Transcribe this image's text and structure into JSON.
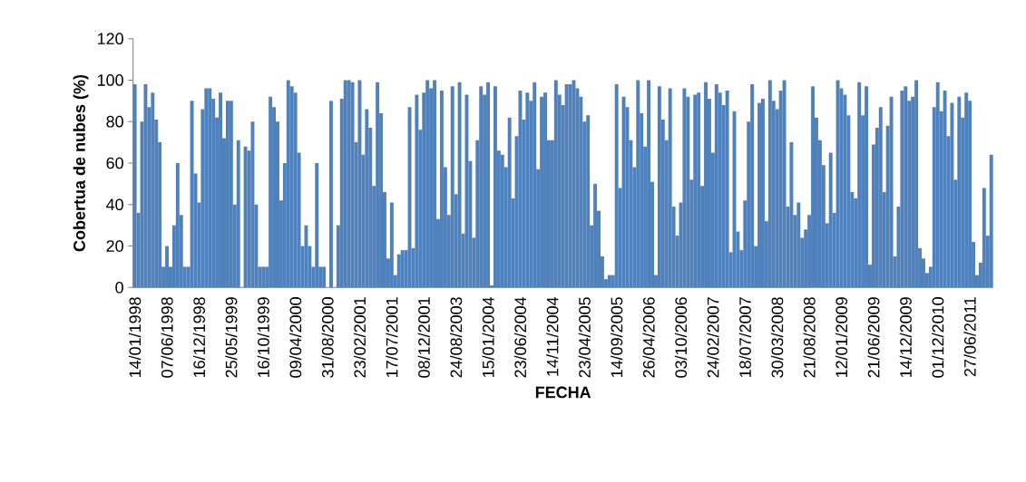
{
  "chart_data": {
    "type": "bar",
    "xlabel": "FECHA",
    "ylabel": "Cobertua de nubes (%)",
    "ylim": [
      0,
      120
    ],
    "yticks": [
      0,
      20,
      40,
      60,
      80,
      100,
      120
    ],
    "color": "#4f81bd",
    "categories": [
      "14/01/1998",
      null,
      null,
      null,
      null,
      null,
      null,
      null,
      null,
      "07/06/1998",
      null,
      null,
      null,
      null,
      null,
      null,
      null,
      null,
      "16/12/1998",
      null,
      null,
      null,
      null,
      null,
      null,
      null,
      null,
      "25/05/1999",
      null,
      null,
      null,
      null,
      null,
      null,
      null,
      null,
      "16/10/1999",
      null,
      null,
      null,
      null,
      null,
      null,
      null,
      null,
      "09/04/2000",
      null,
      null,
      null,
      null,
      null,
      null,
      null,
      null,
      "31/08/2000",
      null,
      null,
      null,
      null,
      null,
      null,
      null,
      null,
      "23/02/2001",
      null,
      null,
      null,
      null,
      null,
      null,
      null,
      null,
      "17/07/2001",
      null,
      null,
      null,
      null,
      null,
      null,
      null,
      null,
      "08/12/2001",
      null,
      null,
      null,
      null,
      null,
      null,
      null,
      null,
      "24/08/2003",
      null,
      null,
      null,
      null,
      null,
      null,
      null,
      null,
      "15/01/2004",
      null,
      null,
      null,
      null,
      null,
      null,
      null,
      null,
      "23/06/2004",
      null,
      null,
      null,
      null,
      null,
      null,
      null,
      null,
      "14/11/2004",
      null,
      null,
      null,
      null,
      null,
      null,
      null,
      null,
      "23/04/2005",
      null,
      null,
      null,
      null,
      null,
      null,
      null,
      null,
      "14/09/2005",
      null,
      null,
      null,
      null,
      null,
      null,
      null,
      null,
      "26/04/2006",
      null,
      null,
      null,
      null,
      null,
      null,
      null,
      null,
      "03/10/2006",
      null,
      null,
      null,
      null,
      null,
      null,
      null,
      null,
      "24/02/2007",
      null,
      null,
      null,
      null,
      null,
      null,
      null,
      null,
      "18/07/2007",
      null,
      null,
      null,
      null,
      null,
      null,
      null,
      null,
      "30/03/2008",
      null,
      null,
      null,
      null,
      null,
      null,
      null,
      null,
      "21/08/2008",
      null,
      null,
      null,
      null,
      null,
      null,
      null,
      null,
      "12/01/2009",
      null,
      null,
      null,
      null,
      null,
      null,
      null,
      null,
      "21/06/2009",
      null,
      null,
      null,
      null,
      null,
      null,
      null,
      null,
      "14/12/2009",
      null,
      null,
      null,
      null,
      null,
      null,
      null,
      null,
      "01/12/2010",
      null,
      null,
      null,
      null,
      null,
      null,
      null,
      null,
      "27/06/2011",
      null,
      null,
      null,
      null,
      null,
      null
    ],
    "values": [
      98,
      36,
      80,
      98,
      87,
      94,
      81,
      70,
      10,
      20,
      10,
      30,
      60,
      35,
      10,
      10,
      90,
      55,
      41,
      86,
      96,
      96,
      91,
      82,
      94,
      72,
      90,
      90,
      40,
      71,
      0,
      68,
      66,
      80,
      40,
      10,
      10,
      10,
      92,
      87,
      80,
      42,
      60,
      100,
      97,
      94,
      65,
      20,
      30,
      20,
      10,
      60,
      10,
      10,
      0,
      90,
      0,
      30,
      91,
      100,
      100,
      99,
      70,
      100,
      64,
      86,
      77,
      49,
      99,
      84,
      46,
      14,
      41,
      6,
      16,
      18,
      18,
      87,
      19,
      93,
      76,
      94,
      100,
      96,
      100,
      33,
      95,
      58,
      35,
      97,
      45,
      99,
      26,
      93,
      61,
      24,
      71,
      97,
      93,
      99,
      1,
      97,
      66,
      64,
      58,
      82,
      43,
      73,
      95,
      81,
      94,
      90,
      99,
      57,
      92,
      94,
      71,
      71,
      100,
      93,
      88,
      98,
      98,
      100,
      96,
      92,
      80,
      83,
      30,
      50,
      37,
      15,
      4,
      6,
      6,
      98,
      48,
      92,
      87,
      71,
      58,
      100,
      84,
      68,
      100,
      51,
      6,
      97,
      81,
      71,
      96,
      39,
      25,
      41,
      96,
      92,
      52,
      93,
      94,
      49,
      99,
      91,
      65,
      98,
      94,
      88,
      95,
      17,
      85,
      27,
      18,
      42,
      80,
      98,
      20,
      89,
      91,
      32,
      100,
      90,
      86,
      95,
      100,
      39,
      70,
      35,
      41,
      24,
      28,
      35,
      97,
      82,
      71,
      59,
      31,
      65,
      36,
      100,
      96,
      93,
      83,
      46,
      43,
      99,
      83,
      97,
      11,
      69,
      77,
      87,
      46,
      78,
      92,
      15,
      39,
      95,
      97,
      90,
      92,
      100,
      19,
      14,
      7,
      10,
      87,
      99,
      85,
      95,
      73,
      89,
      52,
      92,
      82,
      94,
      90,
      22,
      6,
      12,
      48,
      25,
      64
    ]
  }
}
